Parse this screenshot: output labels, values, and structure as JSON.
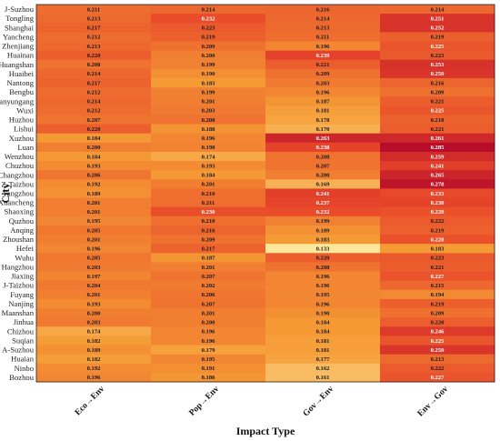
{
  "chart_data": {
    "type": "heatmap",
    "title": "",
    "xlabel": "Impact Type",
    "ylabel": "City",
    "x_categories": [
      "Eco→Env",
      "Pop→Env",
      "Gov→Env",
      "Env→Gov"
    ],
    "y_categories": [
      "J-Suzhou",
      "Tongling",
      "Shanghai",
      "Yancheng",
      "Zhenjiang",
      "Huainan",
      "Huangshan",
      "Huaibei",
      "Nantong",
      "Bengbu",
      "Lianyungang",
      "Wuxi",
      "Huzhou",
      "Lishui",
      "Xuzhou",
      "Luan",
      "Wenzhou",
      "Chuzhou",
      "Changzhou",
      "Z-Taizhou",
      "Yangzhou",
      "Xuancheng",
      "Shaoxing",
      "Quzhou",
      "Anqing",
      "Zhoushan",
      "Hefei",
      "Wuhu",
      "Hangzhou",
      "Jiaxing",
      "J-Taizhou",
      "Fuyang",
      "Nanjing",
      "Maanshan",
      "Jinhua",
      "Chizhou",
      "Suqian",
      "A-Suzhou",
      "Huaian",
      "Ninbo",
      "Bozhou"
    ],
    "values": [
      [
        0.211,
        0.214,
        0.216,
        0.214
      ],
      [
        0.213,
        0.232,
        0.214,
        0.251
      ],
      [
        0.217,
        0.223,
        0.213,
        0.252
      ],
      [
        0.212,
        0.219,
        0.211,
        0.219
      ],
      [
        0.213,
        0.209,
        0.196,
        0.225
      ],
      [
        0.22,
        0.2,
        0.239,
        0.223
      ],
      [
        0.208,
        0.199,
        0.221,
        0.253
      ],
      [
        0.214,
        0.19,
        0.209,
        0.25
      ],
      [
        0.217,
        0.183,
        0.203,
        0.216
      ],
      [
        0.212,
        0.199,
        0.196,
        0.209
      ],
      [
        0.214,
        0.201,
        0.187,
        0.221
      ],
      [
        0.212,
        0.203,
        0.181,
        0.225
      ],
      [
        0.207,
        0.208,
        0.178,
        0.218
      ],
      [
        0.22,
        0.188,
        0.17,
        0.221
      ],
      [
        0.184,
        0.196,
        0.263,
        0.261
      ],
      [
        0.2,
        0.198,
        0.238,
        0.285
      ],
      [
        0.184,
        0.174,
        0.208,
        0.259
      ],
      [
        0.193,
        0.193,
        0.207,
        0.241
      ],
      [
        0.206,
        0.184,
        0.2,
        0.265
      ],
      [
        0.192,
        0.201,
        0.169,
        0.278
      ],
      [
        0.189,
        0.21,
        0.241,
        0.233
      ],
      [
        0.201,
        0.211,
        0.237,
        0.238
      ],
      [
        0.201,
        0.23,
        0.232,
        0.228
      ],
      [
        0.195,
        0.21,
        0.199,
        0.222
      ],
      [
        0.205,
        0.216,
        0.189,
        0.219
      ],
      [
        0.201,
        0.209,
        0.183,
        0.228
      ],
      [
        0.196,
        0.217,
        0.133,
        0.183
      ],
      [
        0.205,
        0.187,
        0.22,
        0.223
      ],
      [
        0.203,
        0.201,
        0.208,
        0.221
      ],
      [
        0.197,
        0.207,
        0.196,
        0.227
      ],
      [
        0.204,
        0.202,
        0.196,
        0.215
      ],
      [
        0.201,
        0.206,
        0.195,
        0.194
      ],
      [
        0.193,
        0.207,
        0.196,
        0.219
      ],
      [
        0.2,
        0.201,
        0.19,
        0.209
      ],
      [
        0.203,
        0.2,
        0.184,
        0.22
      ],
      [
        0.174,
        0.196,
        0.184,
        0.246
      ],
      [
        0.182,
        0.196,
        0.181,
        0.225
      ],
      [
        0.189,
        0.179,
        0.181,
        0.25
      ],
      [
        0.182,
        0.195,
        0.177,
        0.213
      ],
      [
        0.192,
        0.191,
        0.162,
        0.222
      ],
      [
        0.196,
        0.186,
        0.161,
        0.227
      ]
    ],
    "color_scale": [
      "#fde79b",
      "#f59a35",
      "#e8472a",
      "#b80d2a"
    ],
    "value_range": [
      0.133,
      0.285
    ],
    "legend": "none"
  }
}
